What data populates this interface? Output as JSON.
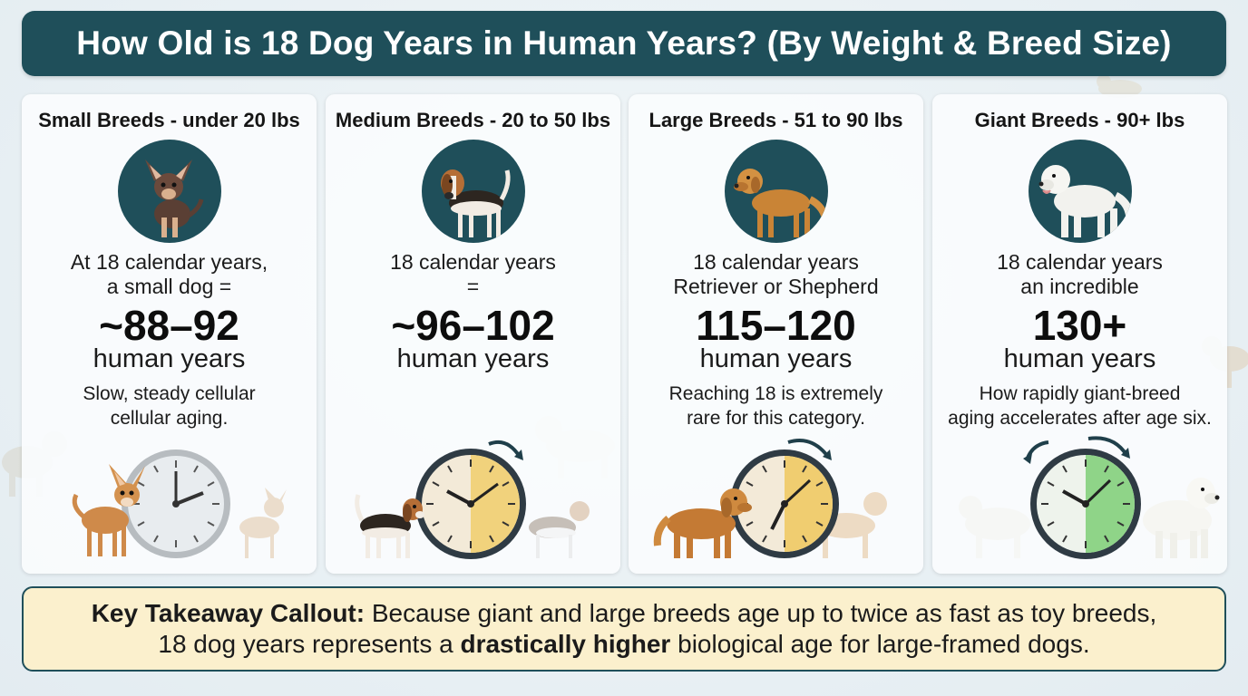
{
  "title": "How Old is 18 Dog Years in Human Years? (By Weight & Breed Size)",
  "colors": {
    "header": "#1f4f5a",
    "callout_bg": "#fbf0cd",
    "clock_small": "#e8ecef",
    "clock_medium": "#f1d27c",
    "clock_large": "#f0cd70",
    "clock_giant": "#8fd488"
  },
  "cards": [
    {
      "title": "Small Breeds - under 20 lbs",
      "line1": "At 18 calendar years,",
      "line2": "a small dog =",
      "value": "~88–92",
      "unit": "human years",
      "note1": "Slow, steady cellular",
      "note2": "cellular aging.",
      "icon": "chihuahua-icon",
      "clock_fill": 0.0
    },
    {
      "title": "Medium Breeds - 20 to 50 lbs",
      "line1": "18 calendar years",
      "line2": "=",
      "value": "~96–102",
      "unit": "human years",
      "note1": "",
      "note2": "",
      "icon": "beagle-icon",
      "clock_fill": 0.5
    },
    {
      "title": "Large Breeds - 51 to 90 lbs",
      "line1": "18 calendar years",
      "line2": "Retriever or Shepherd",
      "value": "115–120",
      "unit": "human years",
      "note1": "Reaching 18 is extremely",
      "note2": "rare for this category.",
      "icon": "golden-retriever-icon",
      "clock_fill": 0.5
    },
    {
      "title": "Giant Breeds - 90+ lbs",
      "line1": "18 calendar years",
      "line2": "an incredible",
      "value": "130+",
      "unit": "human years",
      "note1": "How rapidly giant-breed",
      "note2": "aging accelerates after age six.",
      "icon": "great-pyrenees-icon",
      "clock_fill": 0.5
    }
  ],
  "callout": {
    "label": "Key Takeaway Callout:",
    "text1": " Because giant and large breeds age up to twice as fast as toy breeds,",
    "text2a": "18 dog years represents a ",
    "text2b": "drastically higher",
    "text2c": " biological age for large-framed dogs."
  }
}
